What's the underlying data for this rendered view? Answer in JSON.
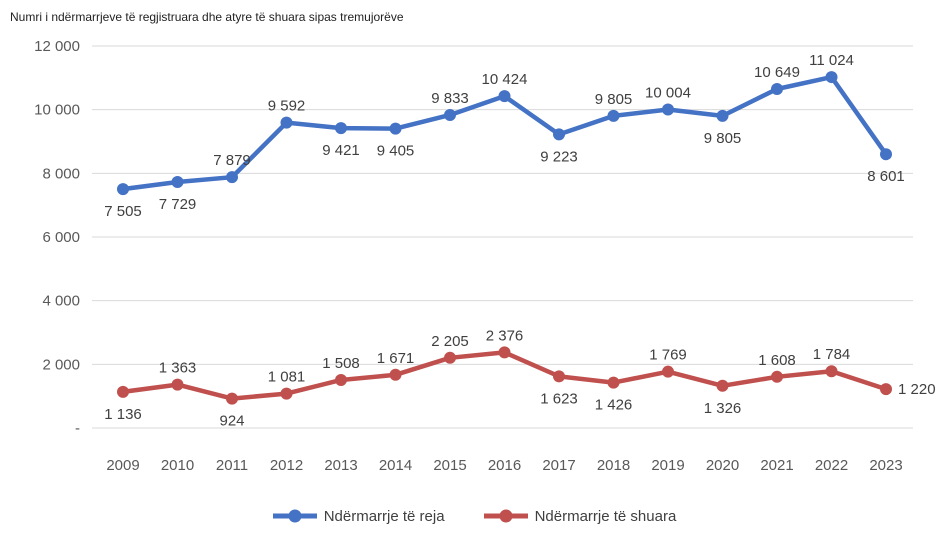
{
  "chart_data": {
    "type": "line",
    "title": "Numri i ndërmarrjeve të regjistruara dhe atyre të shuara sipas tremujorëve",
    "categories": [
      "2009",
      "2010",
      "2011",
      "2012",
      "2013",
      "2014",
      "2015",
      "2016",
      "2017",
      "2018",
      "2019",
      "2020",
      "2021",
      "2022",
      "2023"
    ],
    "series": [
      {
        "name": "Ndërmarrje të reja",
        "color": "#4472C4",
        "values": [
          7505,
          7729,
          7879,
          9592,
          9421,
          9405,
          9833,
          10424,
          9223,
          9805,
          10004,
          9805,
          10649,
          11024,
          8601
        ],
        "label_positions": [
          "below",
          "below",
          "above",
          "above",
          "below",
          "below",
          "above",
          "above",
          "below",
          "above",
          "above",
          "below",
          "above",
          "above",
          "below"
        ]
      },
      {
        "name": "Ndërmarrje të shuara",
        "color": "#C0504D",
        "values": [
          1136,
          1363,
          924,
          1081,
          1508,
          1671,
          2205,
          2376,
          1623,
          1426,
          1769,
          1326,
          1608,
          1784,
          1220
        ],
        "label_positions": [
          "below",
          "above",
          "below",
          "above",
          "above",
          "above",
          "above",
          "above",
          "below",
          "below",
          "above",
          "below",
          "above",
          "above",
          "right"
        ]
      }
    ],
    "xlabel": "",
    "ylabel": "",
    "ylim": [
      0,
      12000
    ],
    "ytick_step": 2000,
    "ytick_labels": [
      "-",
      "2 000",
      "4 000",
      "6 000",
      "8 000",
      "10 000",
      "12 000"
    ],
    "zero_tick_label": "-",
    "grid": "horizontal",
    "grid_color": "#D9D9D9",
    "tick_color": "#595959",
    "label_color": "#404040",
    "legend_position": "bottom",
    "number_format": "space-thousands"
  }
}
